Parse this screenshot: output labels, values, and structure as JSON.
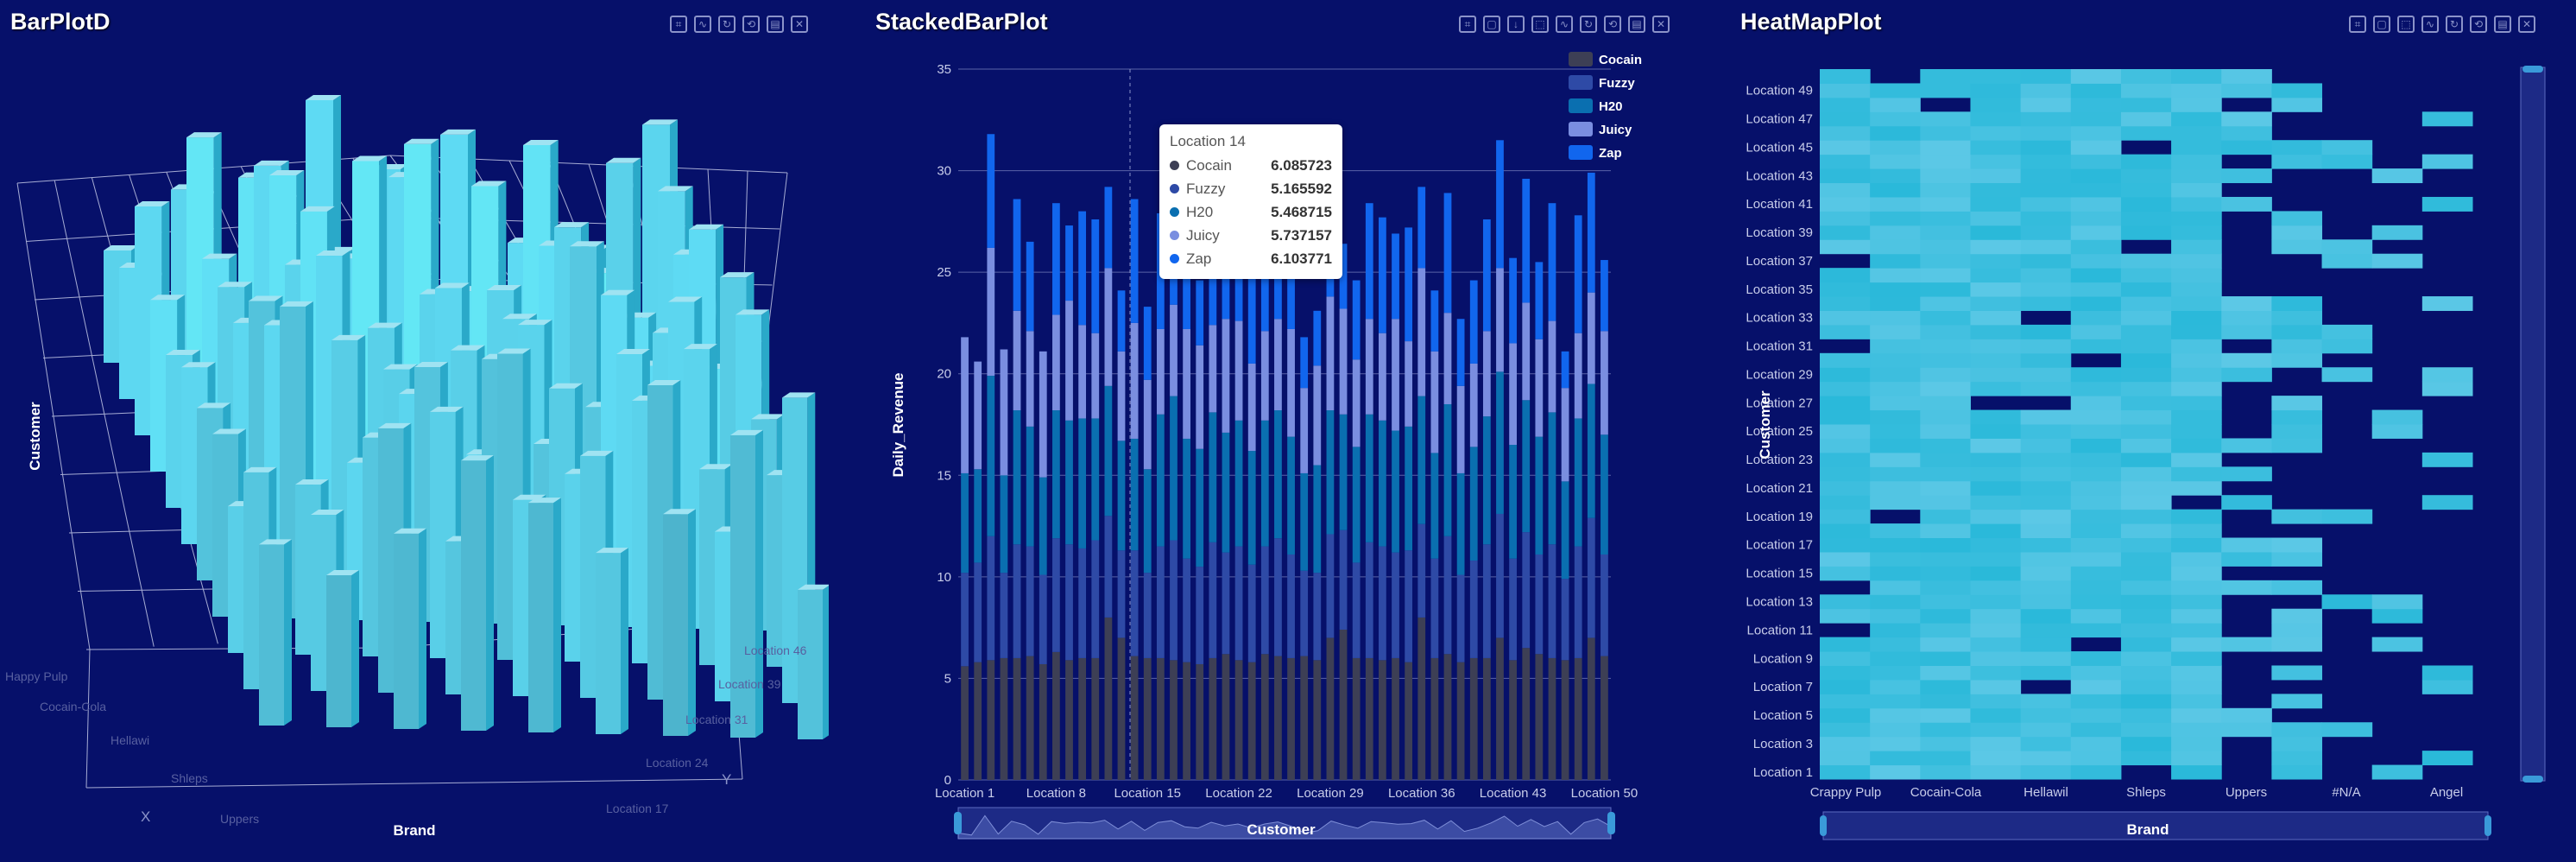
{
  "panels": {
    "bar3d_title": "BarPlotD",
    "stacked_title": "StackedBarPlot",
    "heatmap_title": "HeatMapPlot"
  },
  "colors": {
    "background": "#06106a",
    "Cocain": "#3d3f55",
    "Fuzzy": "#2e4aa6",
    "H20": "#0a6fb0",
    "Juicy": "#7a8ee0",
    "Zap": "#1166ee",
    "heat_low": "#5cc9e6",
    "heat_high": "#15b5d6"
  },
  "tooltip": {
    "title": "Location 14",
    "rows": [
      {
        "name": "Cocain",
        "value": "6.085723",
        "color": "#3d3f55"
      },
      {
        "name": "Fuzzy",
        "value": "5.165592",
        "color": "#2e4aa6"
      },
      {
        "name": "H20",
        "value": "5.468715",
        "color": "#0a6fb0"
      },
      {
        "name": "Juicy",
        "value": "5.737157",
        "color": "#7a8ee0"
      },
      {
        "name": "Zap",
        "value": "6.103771",
        "color": "#1166ee"
      }
    ]
  },
  "chart_data": [
    {
      "type": "bar",
      "title": "BarPlotD",
      "xlabel": "Brand",
      "ylabel": "Customer",
      "x_axis_name": "X",
      "y_axis_name": "Y",
      "brand_ticks": [
        "Happy Pulp",
        "Cocain-Cola",
        "Hellawi",
        "Shleps",
        "Uppers"
      ],
      "location_ticks": [
        "Location 46",
        "Location 39",
        "Location 31",
        "Location 24",
        "Location 17"
      ],
      "grid": true
    },
    {
      "type": "bar",
      "stacked": true,
      "title": "StackedBarPlot",
      "xlabel": "Customer",
      "ylabel": "Daily_Revenue",
      "ylim": [
        0,
        35
      ],
      "yticks": [
        0,
        5,
        10,
        15,
        20,
        25,
        30,
        35
      ],
      "xtick_labels": [
        "Location 1",
        "Location 8",
        "Location 15",
        "Location 22",
        "Location 29",
        "Location 36",
        "Location 43",
        "Location 50"
      ],
      "legend": "top-right",
      "categories": [
        "Location 1",
        "Location 2",
        "Location 3",
        "Location 4",
        "Location 5",
        "Location 6",
        "Location 7",
        "Location 8",
        "Location 9",
        "Location 10",
        "Location 11",
        "Location 12",
        "Location 13",
        "Location 14",
        "Location 15",
        "Location 16",
        "Location 17",
        "Location 18",
        "Location 19",
        "Location 20",
        "Location 21",
        "Location 22",
        "Location 23",
        "Location 24",
        "Location 25",
        "Location 26",
        "Location 27",
        "Location 28",
        "Location 29",
        "Location 30",
        "Location 31",
        "Location 32",
        "Location 33",
        "Location 34",
        "Location 35",
        "Location 36",
        "Location 37",
        "Location 38",
        "Location 39",
        "Location 40",
        "Location 41",
        "Location 42",
        "Location 43",
        "Location 44",
        "Location 45",
        "Location 46",
        "Location 47",
        "Location 48",
        "Location 49",
        "Location 50"
      ],
      "totals": [
        21.8,
        20.6,
        31.8,
        21.2,
        28.6,
        26.5,
        21.1,
        28.4,
        27.3,
        28.0,
        27.6,
        29.2,
        24.1,
        28.6,
        23.3,
        27.9,
        28.9,
        25.4,
        24.6,
        28.0,
        25.9,
        27.0,
        24.7,
        27.0,
        28.2,
        25.7,
        21.8,
        23.1,
        28.7,
        26.4,
        24.6,
        28.4,
        27.7,
        26.9,
        27.2,
        29.2,
        24.1,
        28.9,
        22.7,
        24.6,
        27.6,
        31.5,
        25.7,
        29.6,
        25.5,
        28.4,
        21.1,
        27.8,
        29.9,
        25.6
      ],
      "series": [
        {
          "name": "Cocain",
          "values": [
            5.6,
            5.8,
            5.9,
            6.0,
            6.0,
            6.1,
            5.7,
            6.3,
            5.9,
            6.0,
            6.0,
            8.0,
            7.0,
            6.1,
            6.0,
            6.0,
            5.9,
            5.8,
            5.7,
            6.0,
            6.2,
            5.9,
            5.8,
            6.2,
            6.1,
            6.0,
            6.1,
            5.9,
            7.0,
            7.4,
            6.0,
            6.0,
            5.9,
            6.0,
            5.8,
            8.0,
            6.0,
            6.2,
            5.8,
            6.0,
            6.0,
            7.0,
            5.9,
            6.5,
            6.2,
            6.0,
            5.9,
            6.0,
            7.0,
            6.1
          ]
        },
        {
          "name": "Fuzzy",
          "values": [
            4.6,
            4.9,
            6.1,
            4.2,
            5.6,
            5.4,
            4.4,
            5.6,
            5.7,
            5.4,
            5.8,
            5.0,
            4.3,
            5.2,
            4.2,
            5.5,
            5.9,
            5.1,
            4.8,
            5.7,
            5.0,
            5.6,
            4.8,
            5.3,
            5.8,
            5.1,
            4.2,
            4.3,
            5.1,
            4.9,
            4.7,
            5.7,
            5.6,
            5.2,
            5.5,
            4.6,
            4.9,
            5.8,
            4.3,
            4.8,
            5.6,
            6.1,
            5.0,
            5.7,
            4.9,
            5.6,
            4.0,
            5.5,
            5.9,
            5.0
          ]
        },
        {
          "name": "H20",
          "values": [
            4.9,
            4.6,
            7.9,
            4.8,
            6.6,
            5.9,
            4.8,
            6.3,
            6.1,
            6.4,
            6.0,
            6.4,
            5.4,
            5.5,
            5.1,
            6.5,
            7.1,
            5.9,
            5.8,
            6.4,
            5.9,
            6.2,
            5.6,
            6.2,
            6.3,
            5.8,
            4.8,
            5.3,
            6.1,
            5.7,
            5.7,
            6.3,
            6.2,
            6.0,
            6.1,
            6.3,
            5.2,
            6.5,
            5.0,
            5.6,
            6.3,
            7.0,
            5.6,
            6.5,
            5.8,
            6.5,
            4.8,
            6.3,
            6.6,
            5.9
          ]
        },
        {
          "name": "Juicy",
          "values": [
            6.7,
            5.3,
            6.3,
            6.2,
            4.9,
            4.7,
            6.2,
            4.7,
            5.9,
            4.6,
            4.2,
            5.8,
            4.4,
            5.7,
            4.4,
            4.2,
            4.5,
            5.4,
            5.1,
            4.3,
            5.6,
            4.9,
            4.3,
            4.4,
            4.5,
            5.3,
            4.2,
            4.9,
            5.6,
            5.2,
            4.3,
            4.7,
            4.3,
            5.5,
            4.2,
            6.3,
            5.0,
            4.5,
            4.3,
            4.1,
            4.2,
            5.1,
            5.0,
            4.8,
            4.8,
            4.5,
            4.6,
            4.2,
            4.5,
            5.1
          ]
        },
        {
          "name": "Zap",
          "values": [
            0.0,
            0.0,
            5.6,
            0.0,
            5.5,
            4.4,
            0.0,
            5.5,
            3.7,
            5.6,
            5.6,
            4.0,
            3.0,
            6.1,
            3.6,
            5.7,
            5.5,
            3.2,
            3.2,
            5.6,
            3.2,
            4.4,
            4.2,
            4.9,
            5.5,
            3.5,
            2.5,
            2.7,
            4.9,
            3.2,
            3.9,
            5.7,
            5.7,
            4.2,
            5.6,
            4.0,
            3.0,
            5.9,
            3.3,
            4.1,
            5.5,
            6.3,
            4.2,
            6.1,
            3.8,
            5.8,
            1.8,
            5.8,
            5.9,
            3.5
          ]
        }
      ]
    },
    {
      "type": "heatmap",
      "title": "HeatMapPlot",
      "xlabel": "Brand",
      "ylabel": "Customer",
      "x_tick_labels": [
        "Crappy Pulp",
        "Cocain-Cola",
        "Hellawil",
        "Shleps",
        "Uppers",
        "#N/A",
        "Angel"
      ],
      "y_tick_labels": [
        "Location 1",
        "Location 3",
        "Location 5",
        "Location 7",
        "Location 9",
        "Location 11",
        "Location 13",
        "Location 15",
        "Location 17",
        "Location 19",
        "Location 21",
        "Location 23",
        "Location 25",
        "Location 27",
        "Location 29",
        "Location 31",
        "Location 33",
        "Location 35",
        "Location 37",
        "Location 39",
        "Location 41",
        "Location 43",
        "Location 45",
        "Location 47",
        "Location 49"
      ],
      "rows": 50,
      "cols": 13
    }
  ],
  "stacked_axis_label": "Customer",
  "heatmap_axis_label": "Brand"
}
